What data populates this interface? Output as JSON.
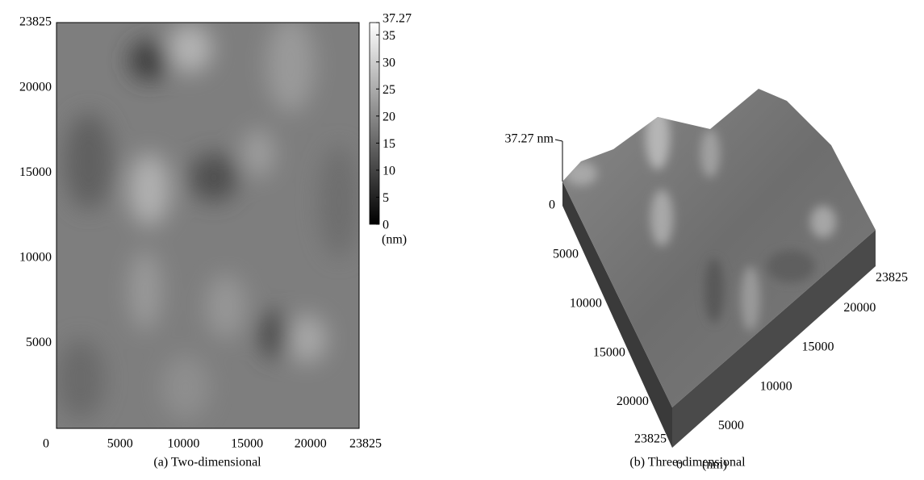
{
  "panels": [
    {
      "caption": "(a) Two-dimensional",
      "xticks": [
        0,
        5000,
        10000,
        15000,
        20000,
        23825
      ],
      "yticks": [
        5000,
        10000,
        15000,
        20000,
        23825
      ],
      "colorbar": {
        "ticks": [
          0,
          5,
          10,
          15,
          20,
          25,
          30,
          35,
          37.27
        ],
        "unit": "(nm)"
      }
    },
    {
      "caption": "(b) Three-dimensional",
      "height_label": "37.27 nm",
      "left_ticks": [
        0,
        5000,
        10000,
        15000,
        20000,
        23825
      ],
      "right_ticks": [
        0,
        5000,
        10000,
        15000,
        20000,
        23825
      ],
      "unit": "(nm)"
    }
  ]
}
